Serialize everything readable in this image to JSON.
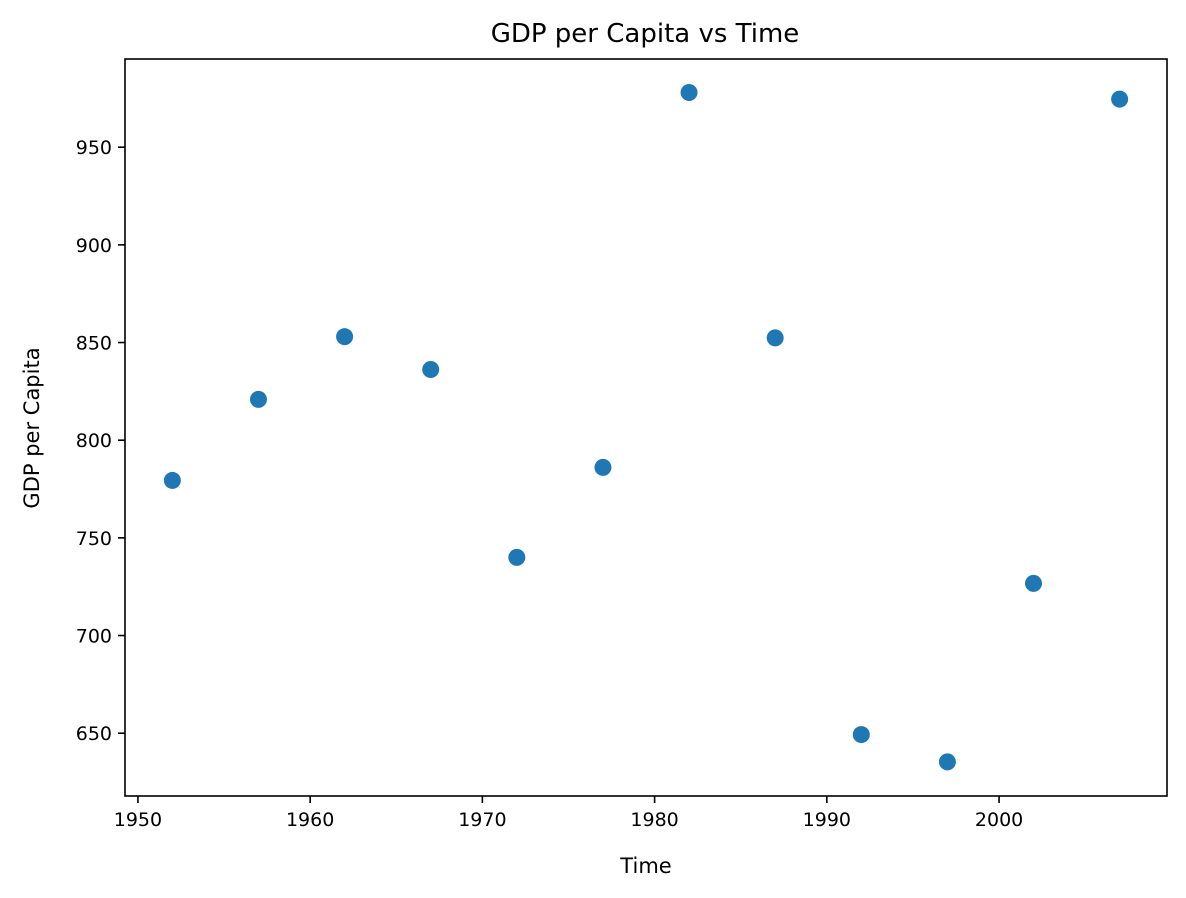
{
  "chart_data": {
    "type": "scatter",
    "title": "GDP per Capita vs Time",
    "xlabel": "Time",
    "ylabel": "GDP per Capita",
    "xlim": [
      1949.25,
      2009.75
    ],
    "ylim": [
      617.85,
      995.15
    ],
    "xticks": [
      1950,
      1960,
      1970,
      1980,
      1990,
      2000
    ],
    "yticks": [
      650,
      700,
      750,
      800,
      850,
      900,
      950
    ],
    "grid": false,
    "legend": "none",
    "point_color": "#1f77b4",
    "points": [
      {
        "x": 1952,
        "y": 779.4
      },
      {
        "x": 1957,
        "y": 820.9
      },
      {
        "x": 1962,
        "y": 853.0
      },
      {
        "x": 1967,
        "y": 836.2
      },
      {
        "x": 1972,
        "y": 740.0
      },
      {
        "x": 1977,
        "y": 786.1
      },
      {
        "x": 1982,
        "y": 978.0
      },
      {
        "x": 1987,
        "y": 852.4
      },
      {
        "x": 1992,
        "y": 649.3
      },
      {
        "x": 1997,
        "y": 635.3
      },
      {
        "x": 2002,
        "y": 726.7
      },
      {
        "x": 2007,
        "y": 974.6
      }
    ]
  }
}
